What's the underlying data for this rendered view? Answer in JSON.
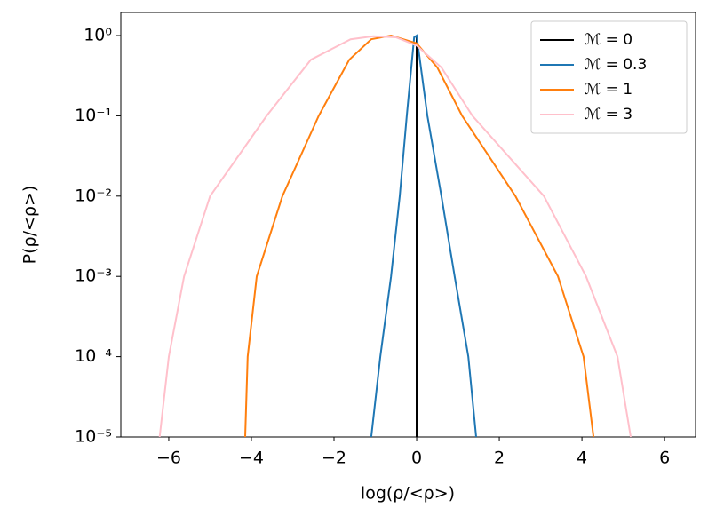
{
  "chart_data": {
    "type": "line",
    "xlabel": "log(ρ/<ρ>)",
    "ylabel": "P(ρ/<ρ>)",
    "xlim": [
      -7.16,
      6.75
    ],
    "xticks": [
      {
        "value": -6,
        "label": "−6"
      },
      {
        "value": -4,
        "label": "−4"
      },
      {
        "value": -2,
        "label": "−2"
      },
      0,
      2,
      4,
      6
    ],
    "ylim": [
      1e-05,
      1.94
    ],
    "yscale": "log",
    "yticks": [
      {
        "value": 1,
        "label": "10⁰"
      },
      {
        "value": 0.1,
        "label": "10⁻¹"
      },
      {
        "value": 0.01,
        "label": "10⁻²"
      },
      {
        "value": 0.001,
        "label": "10⁻³"
      },
      {
        "value": 0.0001,
        "label": "10⁻⁴"
      },
      {
        "value": 1e-05,
        "label": "10⁻⁵"
      }
    ],
    "legend": "upper right",
    "series": [
      {
        "name": "ℳ = 0",
        "color": "#000000",
        "x": [
          0,
          0
        ],
        "values": [
          1e-05,
          1
        ]
      },
      {
        "name": "ℳ = 0.3",
        "color": "#1f77b4",
        "x": [
          -1.1,
          -0.88,
          -0.62,
          -0.41,
          -0.24,
          -0.06,
          0.0,
          0.26,
          0.6,
          0.92,
          1.25,
          1.44
        ],
        "values": [
          1e-05,
          0.0001,
          0.001,
          0.01,
          0.1,
          0.95,
          1.0,
          0.1,
          0.01,
          0.001,
          0.0001,
          1e-05
        ]
      },
      {
        "name": "ℳ = 1",
        "color": "#ff7f0e",
        "x": [
          -4.15,
          -4.09,
          -3.87,
          -3.25,
          -2.37,
          -1.63,
          -1.1,
          -0.62,
          0.0,
          0.5,
          1.1,
          2.39,
          3.42,
          4.04,
          4.28
        ],
        "values": [
          1e-05,
          0.0001,
          0.001,
          0.01,
          0.1,
          0.5,
          0.9,
          1.0,
          0.8,
          0.4,
          0.1,
          0.01,
          0.001,
          0.0001,
          1e-05
        ]
      },
      {
        "name": "ℳ = 3",
        "color": "#ffc0cb",
        "x": [
          -6.22,
          -6.0,
          -5.63,
          -5.0,
          -3.63,
          -2.56,
          -1.6,
          -1.05,
          -0.5,
          0.0,
          0.6,
          1.35,
          3.08,
          4.1,
          4.86,
          5.18
        ],
        "values": [
          1e-05,
          0.0001,
          0.001,
          0.01,
          0.1,
          0.5,
          0.9,
          0.98,
          0.95,
          0.75,
          0.4,
          0.1,
          0.01,
          0.001,
          0.0001,
          1e-05
        ]
      }
    ]
  }
}
